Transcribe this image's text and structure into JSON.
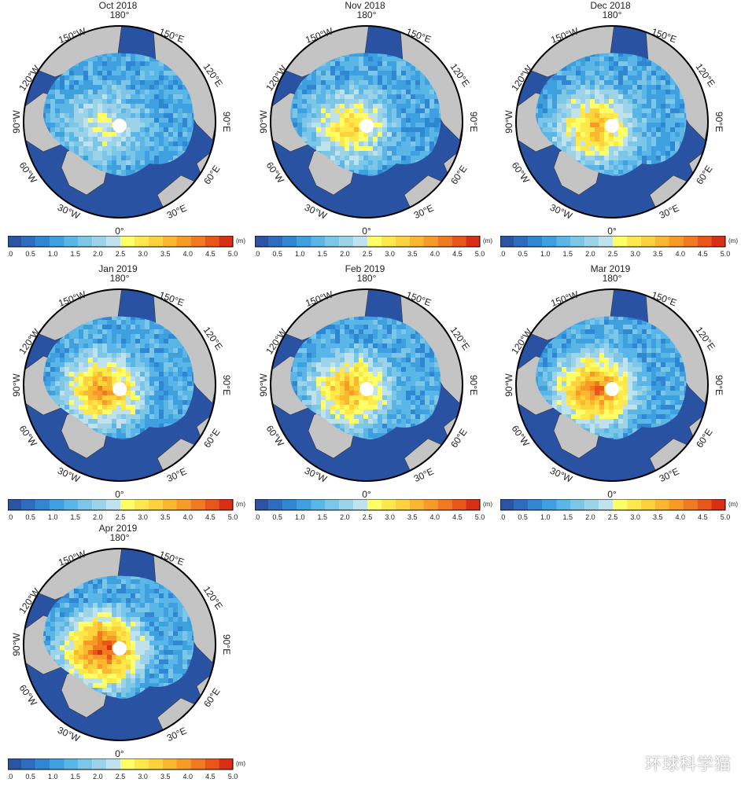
{
  "panels": [
    {
      "title": "Oct 2018",
      "thick_core": 0.35
    },
    {
      "title": "Nov 2018",
      "thick_core": 0.55
    },
    {
      "title": "Dec 2018",
      "thick_core": 0.65
    },
    {
      "title": "Jan 2019",
      "thick_core": 0.75
    },
    {
      "title": "Feb 2019",
      "thick_core": 0.7
    },
    {
      "title": "Mar 2019",
      "thick_core": 0.85
    },
    {
      "title": "Apr 2019",
      "thick_core": 0.95
    }
  ],
  "longitude_labels": {
    "top": "180°",
    "bottom": "0°",
    "left": "90°W",
    "right": "90°E",
    "nw_upper": "150°W",
    "ne_upper": "150°E",
    "nw_lower": "120°W",
    "ne_lower": "120°E",
    "sw_upper": "60°W",
    "se_upper": "60°E",
    "sw_lower": "30°W",
    "se_lower": "30°E"
  },
  "colorbar": {
    "unit": "(m)",
    "ticks": [
      "0.0",
      "0.5",
      "1.0",
      "1.5",
      "2.0",
      "2.5",
      "3.0",
      "3.5",
      "4.0",
      "4.5",
      "5.0"
    ],
    "colors": [
      "#2b55a4",
      "#2e6cc0",
      "#2f86d2",
      "#3ea0de",
      "#5ab6e6",
      "#7cc6e8",
      "#9dd3e8",
      "#bfe2ec",
      "#ffff66",
      "#ffe84a",
      "#fdd23a",
      "#fbb82e",
      "#f89a26",
      "#f27a1e",
      "#e95618",
      "#d92f14"
    ],
    "range": [
      0,
      5
    ]
  },
  "map_colors": {
    "ocean": "#2a52a2",
    "land": "#c4c4c4",
    "coast": "#333333",
    "pole_hole": "#ffffff"
  },
  "watermark": "环球科学猫"
}
